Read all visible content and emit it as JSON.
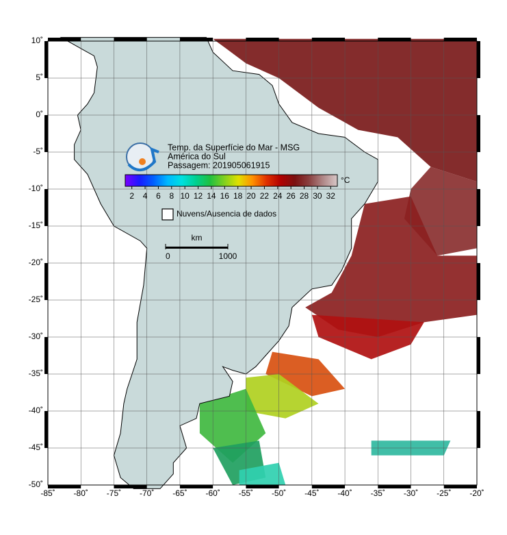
{
  "map": {
    "type": "map",
    "xlim": [
      -85,
      -20
    ],
    "ylim": [
      -50,
      10
    ],
    "xticks": [
      {
        "value": -85,
        "label": "-85˚"
      },
      {
        "value": -80,
        "label": "-80˚"
      },
      {
        "value": -75,
        "label": "-75˚"
      },
      {
        "value": -70,
        "label": "-70˚"
      },
      {
        "value": -65,
        "label": "-65˚"
      },
      {
        "value": -60,
        "label": "-60˚"
      },
      {
        "value": -55,
        "label": "-55˚"
      },
      {
        "value": -50,
        "label": "-50˚"
      },
      {
        "value": -45,
        "label": "-45˚"
      },
      {
        "value": -40,
        "label": "-40˚"
      },
      {
        "value": -35,
        "label": "-35˚"
      },
      {
        "value": -30,
        "label": "-30˚"
      },
      {
        "value": -25,
        "label": "-25˚"
      },
      {
        "value": -20,
        "label": "-20˚"
      }
    ],
    "yticks": [
      {
        "value": 10,
        "label": "10˚"
      },
      {
        "value": 5,
        "label": "5˚"
      },
      {
        "value": 0,
        "label": "0˚"
      },
      {
        "value": -5,
        "label": "-5˚"
      },
      {
        "value": -10,
        "label": "-10˚"
      },
      {
        "value": -15,
        "label": "-15˚"
      },
      {
        "value": -20,
        "label": "-20˚"
      },
      {
        "value": -25,
        "label": "-25˚"
      },
      {
        "value": -30,
        "label": "-30˚"
      },
      {
        "value": -35,
        "label": "-35˚"
      },
      {
        "value": -40,
        "label": "-40˚"
      },
      {
        "value": -45,
        "label": "-45˚"
      },
      {
        "value": -50,
        "label": "-50˚"
      }
    ],
    "grid": true,
    "land_color": "#c9dada",
    "header": {
      "title": "Temp. da Superfície do Mar - MSG",
      "region": "América do Sul",
      "pass": "Passagem: 201905061915"
    },
    "colorbar": {
      "unit": "°C",
      "lim": [
        1,
        33
      ],
      "ticks": [
        2,
        4,
        6,
        8,
        10,
        12,
        14,
        16,
        18,
        20,
        22,
        24,
        26,
        28,
        30,
        32
      ],
      "colors": [
        "#7a00ff",
        "#1a1aff",
        "#0060ff",
        "#00b8ff",
        "#00e0e0",
        "#00d090",
        "#20c040",
        "#80d020",
        "#e0e000",
        "#ff9000",
        "#e03000",
        "#b00000",
        "#7a1010",
        "#8a4040",
        "#b08888",
        "#d8c8c8"
      ]
    },
    "legend": {
      "label": "Nuvens/Ausencia de dados"
    },
    "scale_bar": {
      "unit": "km",
      "ticks": [
        0,
        1000
      ]
    }
  }
}
